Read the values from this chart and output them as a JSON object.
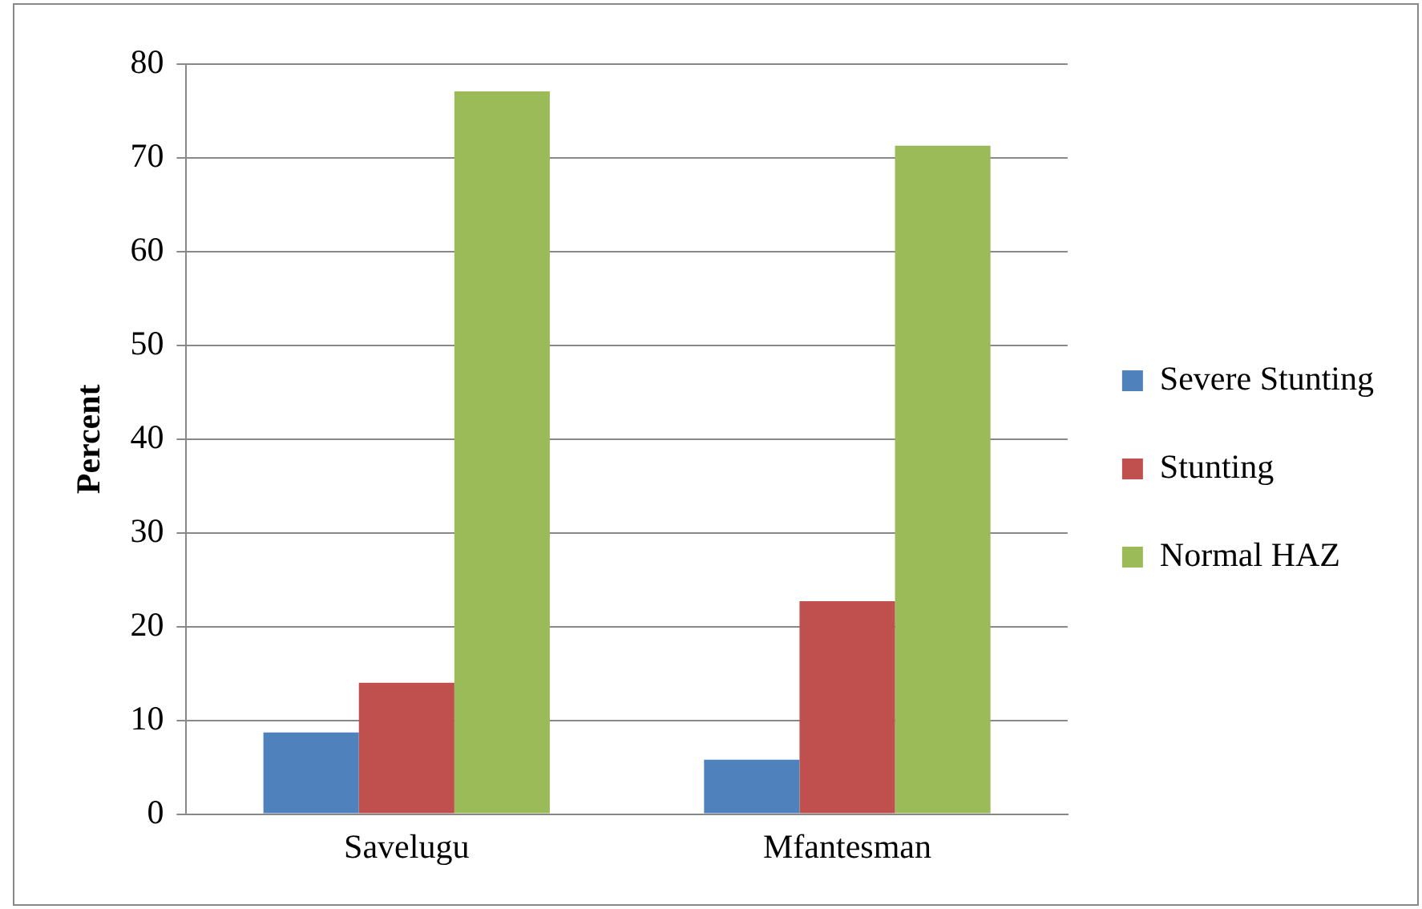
{
  "chart_data": {
    "type": "bar",
    "ylabel": "Percent",
    "categories": [
      "Savelugu",
      "Mfantesman"
    ],
    "series": [
      {
        "name": "Severe Stunting",
        "color": "#4f81bd",
        "values": [
          8.7,
          5.8
        ]
      },
      {
        "name": "Stunting",
        "color": "#c0504d",
        "values": [
          14.0,
          22.7
        ]
      },
      {
        "name": "Normal HAZ",
        "color": "#9bbb59",
        "values": [
          77.1,
          71.3
        ]
      }
    ],
    "ylim": [
      0,
      80
    ],
    "yticks": [
      0,
      10,
      20,
      30,
      40,
      50,
      60,
      70,
      80
    ],
    "grid": "y",
    "legend": "right"
  }
}
